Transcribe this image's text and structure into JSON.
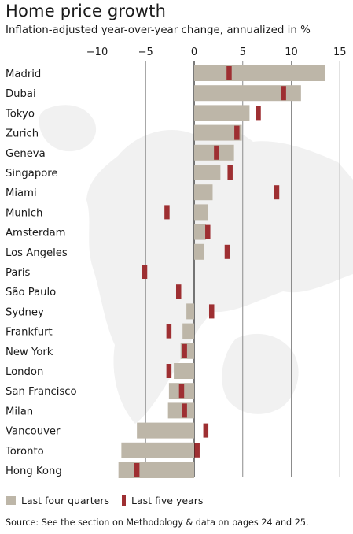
{
  "header": {
    "title": "Home price growth",
    "subtitle": "Inflation-adjusted year-over-year change, annualized in %"
  },
  "chart_data": {
    "type": "bar",
    "orientation": "horizontal",
    "categories": [
      "Madrid",
      "Dubai",
      "Tokyo",
      "Zurich",
      "Geneva",
      "Singapore",
      "Miami",
      "Munich",
      "Amsterdam",
      "Los Angeles",
      "Paris",
      "São Paulo",
      "Sydney",
      "Frankfurt",
      "New York",
      "London",
      "San Francisco",
      "Milan",
      "Vancouver",
      "Toronto",
      "Hong Kong"
    ],
    "x_ticks": [
      -10,
      -5,
      0,
      5,
      10,
      15
    ],
    "xlim": [
      -10,
      15
    ],
    "series": [
      {
        "name": "Last four quarters",
        "values": [
          13.5,
          11.0,
          5.7,
          4.9,
          4.1,
          2.7,
          1.9,
          1.4,
          1.2,
          1.0,
          0.0,
          0.0,
          -0.8,
          -1.2,
          -1.4,
          -2.1,
          -2.6,
          -2.7,
          -5.9,
          -7.5,
          -7.8
        ]
      },
      {
        "name": "Last five years",
        "values": [
          3.6,
          9.2,
          6.6,
          4.4,
          2.3,
          3.7,
          8.5,
          -2.8,
          1.4,
          3.4,
          -5.1,
          -1.6,
          1.8,
          -2.6,
          -1.0,
          -2.6,
          -1.3,
          -1.0,
          1.2,
          0.3,
          -5.9
        ]
      }
    ],
    "colors": {
      "four_quarters": "#bdb6a8",
      "five_years": "#9e2f32",
      "grid": "#8c8c8c"
    },
    "grid": true,
    "legend": "bottom-left"
  },
  "legend": {
    "four_quarters": "Last four quarters",
    "five_years": "Last five years"
  },
  "footer": {
    "source": "Source: See the section on Methodology & data on pages 24 and 25."
  }
}
